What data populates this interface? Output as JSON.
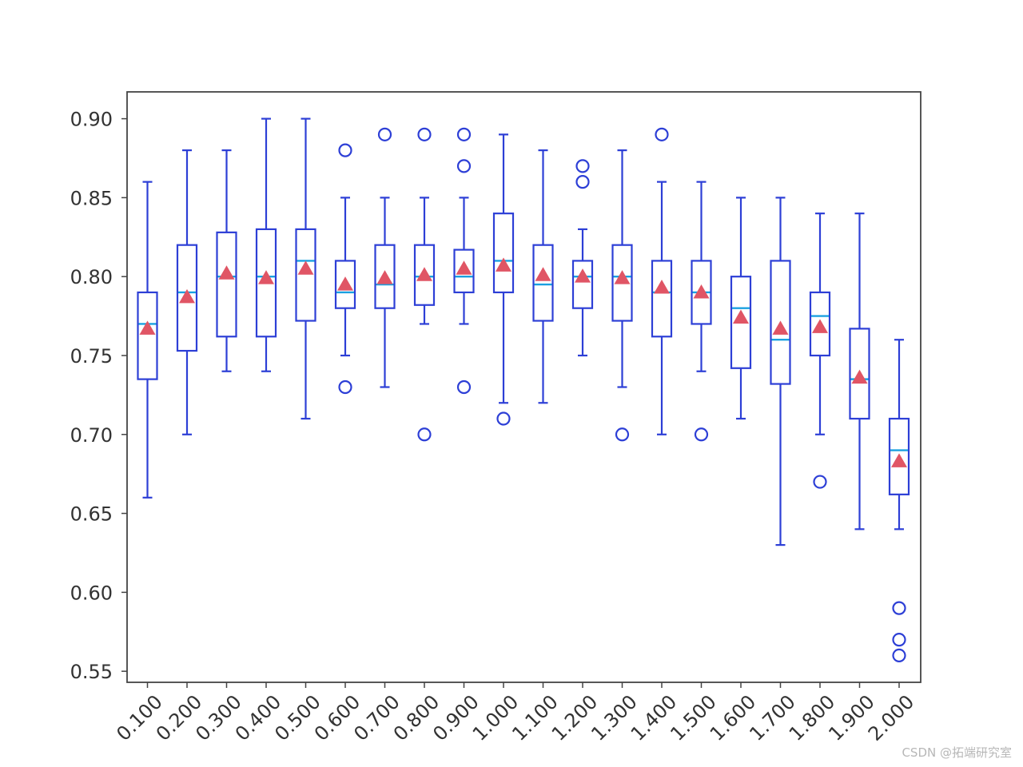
{
  "chart_data": {
    "type": "box",
    "title": "",
    "xlabel": "",
    "ylabel": "",
    "ylim": [
      0.543,
      0.917
    ],
    "yticks": [
      "0.55",
      "0.60",
      "0.65",
      "0.70",
      "0.75",
      "0.80",
      "0.85",
      "0.90"
    ],
    "categories": [
      "0.100",
      "0.200",
      "0.300",
      "0.400",
      "0.500",
      "0.600",
      "0.700",
      "0.800",
      "0.900",
      "1.000",
      "1.100",
      "1.200",
      "1.300",
      "1.400",
      "1.500",
      "1.600",
      "1.700",
      "1.800",
      "1.900",
      "2.000"
    ],
    "boxes": [
      {
        "whislo": 0.66,
        "q1": 0.735,
        "med": 0.77,
        "q3": 0.79,
        "whishi": 0.86,
        "mean": 0.767,
        "fliers": []
      },
      {
        "whislo": 0.7,
        "q1": 0.753,
        "med": 0.79,
        "q3": 0.82,
        "whishi": 0.88,
        "mean": 0.787,
        "fliers": []
      },
      {
        "whislo": 0.74,
        "q1": 0.762,
        "med": 0.8,
        "q3": 0.828,
        "whishi": 0.88,
        "mean": 0.802,
        "fliers": []
      },
      {
        "whislo": 0.74,
        "q1": 0.762,
        "med": 0.8,
        "q3": 0.83,
        "whishi": 0.9,
        "mean": 0.799,
        "fliers": []
      },
      {
        "whislo": 0.71,
        "q1": 0.772,
        "med": 0.81,
        "q3": 0.83,
        "whishi": 0.9,
        "mean": 0.805,
        "fliers": []
      },
      {
        "whislo": 0.75,
        "q1": 0.78,
        "med": 0.79,
        "q3": 0.81,
        "whishi": 0.85,
        "mean": 0.795,
        "fliers": [
          0.88,
          0.73
        ]
      },
      {
        "whislo": 0.73,
        "q1": 0.78,
        "med": 0.795,
        "q3": 0.82,
        "whishi": 0.85,
        "mean": 0.799,
        "fliers": [
          0.89
        ]
      },
      {
        "whislo": 0.77,
        "q1": 0.782,
        "med": 0.8,
        "q3": 0.82,
        "whishi": 0.85,
        "mean": 0.801,
        "fliers": [
          0.89,
          0.7
        ]
      },
      {
        "whislo": 0.77,
        "q1": 0.79,
        "med": 0.8,
        "q3": 0.817,
        "whishi": 0.85,
        "mean": 0.805,
        "fliers": [
          0.89,
          0.87,
          0.73
        ]
      },
      {
        "whislo": 0.72,
        "q1": 0.79,
        "med": 0.81,
        "q3": 0.84,
        "whishi": 0.89,
        "mean": 0.807,
        "fliers": [
          0.71
        ]
      },
      {
        "whislo": 0.72,
        "q1": 0.772,
        "med": 0.795,
        "q3": 0.82,
        "whishi": 0.88,
        "mean": 0.801,
        "fliers": []
      },
      {
        "whislo": 0.75,
        "q1": 0.78,
        "med": 0.8,
        "q3": 0.81,
        "whishi": 0.83,
        "mean": 0.8,
        "fliers": [
          0.87,
          0.86
        ]
      },
      {
        "whislo": 0.73,
        "q1": 0.772,
        "med": 0.8,
        "q3": 0.82,
        "whishi": 0.88,
        "mean": 0.799,
        "fliers": [
          0.7
        ]
      },
      {
        "whislo": 0.7,
        "q1": 0.762,
        "med": 0.79,
        "q3": 0.81,
        "whishi": 0.86,
        "mean": 0.793,
        "fliers": [
          0.89
        ]
      },
      {
        "whislo": 0.74,
        "q1": 0.77,
        "med": 0.79,
        "q3": 0.81,
        "whishi": 0.86,
        "mean": 0.79,
        "fliers": [
          0.7
        ]
      },
      {
        "whislo": 0.71,
        "q1": 0.742,
        "med": 0.78,
        "q3": 0.8,
        "whishi": 0.85,
        "mean": 0.774,
        "fliers": []
      },
      {
        "whislo": 0.63,
        "q1": 0.732,
        "med": 0.76,
        "q3": 0.81,
        "whishi": 0.85,
        "mean": 0.767,
        "fliers": []
      },
      {
        "whislo": 0.7,
        "q1": 0.75,
        "med": 0.775,
        "q3": 0.79,
        "whishi": 0.84,
        "mean": 0.768,
        "fliers": [
          0.67
        ]
      },
      {
        "whislo": 0.64,
        "q1": 0.71,
        "med": 0.735,
        "q3": 0.767,
        "whishi": 0.84,
        "mean": 0.736,
        "fliers": []
      },
      {
        "whislo": 0.64,
        "q1": 0.662,
        "med": 0.69,
        "q3": 0.71,
        "whishi": 0.76,
        "mean": 0.683,
        "fliers": [
          0.59,
          0.57,
          0.56
        ]
      }
    ],
    "colors": {
      "box": "#2d3fd6",
      "median": "#1aa0e0",
      "mean": "#e05565",
      "axis": "#444444"
    },
    "grid": false,
    "legend": "none"
  },
  "watermark": "CSDN @拓端研究室"
}
